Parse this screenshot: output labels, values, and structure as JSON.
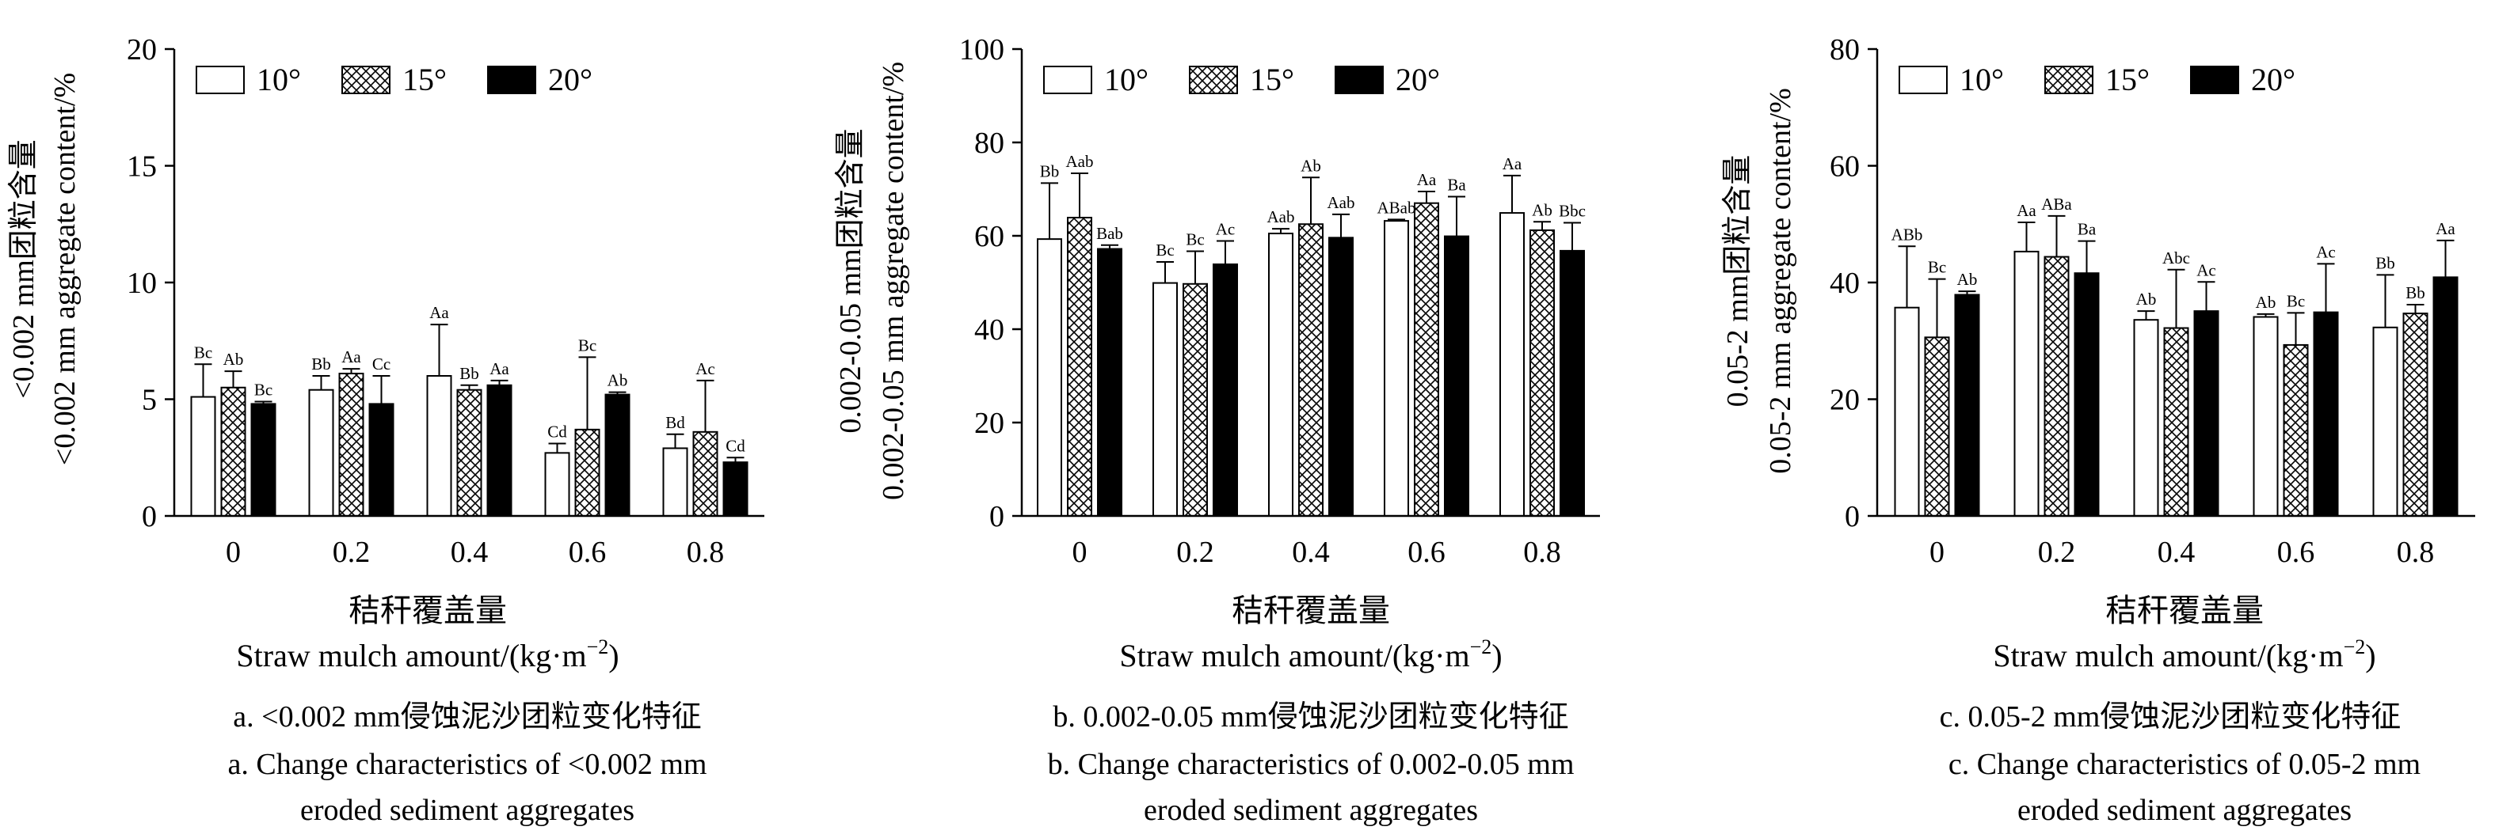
{
  "panels": [
    {
      "ylabel_cn": "<0.002 mm团粒含量",
      "ylabel_en": "<0.002 mm aggregate content/%",
      "xlabel_cn": "秸秆覆盖量",
      "xlabel_en": "Straw mulch amount/(kg·m",
      "xlabel_sup": "−2",
      "xlabel_end": ")",
      "caption_cn": "a. <0.002 mm侵蚀泥沙团粒变化特征",
      "caption_en1": "a. Change characteristics of <0.002 mm",
      "caption_en2": "eroded sediment aggregates"
    },
    {
      "ylabel_cn": "0.002-0.05 mm团粒含量",
      "ylabel_en": "0.002-0.05 mm aggregate content/%",
      "xlabel_cn": "秸秆覆盖量",
      "xlabel_en": "Straw mulch amount/(kg·m",
      "xlabel_sup": "−2",
      "xlabel_end": ")",
      "caption_cn": "b. 0.002-0.05 mm侵蚀泥沙团粒变化特征",
      "caption_en1": "b. Change characteristics of 0.002-0.05 mm",
      "caption_en2": "eroded sediment aggregates"
    },
    {
      "ylabel_cn": "0.05-2 mm团粒含量",
      "ylabel_en": "0.05-2  mm aggregate content/%",
      "xlabel_cn": "秸秆覆盖量",
      "xlabel_en": "Straw mulch amount/(kg·m",
      "xlabel_sup": "−2",
      "xlabel_end": ")",
      "caption_cn": "c. 0.05-2 mm侵蚀泥沙团粒变化特征",
      "caption_en1": "c. Change characteristics of 0.05-2 mm",
      "caption_en2": "eroded sediment aggregates"
    }
  ],
  "chart_data": [
    {
      "type": "bar",
      "categories": [
        "0",
        "0.2",
        "0.4",
        "0.6",
        "0.8"
      ],
      "ylim": [
        0,
        20
      ],
      "yticks": [
        "0",
        "5",
        "10",
        "15",
        "20"
      ],
      "legend_position": "top-left",
      "series": [
        {
          "name": "10°",
          "fill": "white",
          "values": [
            5.1,
            5.4,
            6.0,
            2.7,
            2.9
          ],
          "errors": [
            1.4,
            0.6,
            2.2,
            0.4,
            0.6
          ],
          "labels": [
            "Bc",
            "Bb",
            "Aa",
            "Cd",
            "Bd"
          ]
        },
        {
          "name": "15°",
          "fill": "crosshatch",
          "values": [
            5.5,
            6.1,
            5.4,
            3.7,
            3.6
          ],
          "errors": [
            0.7,
            0.2,
            0.2,
            3.1,
            2.2
          ],
          "labels": [
            "Ab",
            "Aa",
            "Bb",
            "Bc",
            "Ac"
          ]
        },
        {
          "name": "20°",
          "fill": "black",
          "values": [
            4.8,
            4.8,
            5.6,
            5.2,
            2.3
          ],
          "errors": [
            0.1,
            1.2,
            0.2,
            0.1,
            0.2
          ],
          "labels": [
            "Bc",
            "Cc",
            "Aa",
            "Ab",
            "Cd"
          ]
        }
      ]
    },
    {
      "type": "bar",
      "categories": [
        "0",
        "0.2",
        "0.4",
        "0.6",
        "0.8"
      ],
      "ylim": [
        0,
        100
      ],
      "yticks": [
        "0",
        "20",
        "40",
        "60",
        "80",
        "100"
      ],
      "legend_position": "top-left",
      "series": [
        {
          "name": "10°",
          "fill": "white",
          "values": [
            59.3,
            49.9,
            60.5,
            63.2,
            64.9
          ],
          "errors": [
            12,
            4.5,
            1.0,
            0.3,
            8.0
          ],
          "labels": [
            "Bb",
            "Bc",
            "Aab",
            "ABab",
            "Aa"
          ]
        },
        {
          "name": "15°",
          "fill": "crosshatch",
          "values": [
            63.9,
            49.7,
            62.5,
            67.0,
            61.2
          ],
          "errors": [
            9.5,
            7.0,
            10.0,
            2.5,
            1.8
          ],
          "labels": [
            "Aab",
            "Bc",
            "Ab",
            "Aa",
            "Ab"
          ]
        },
        {
          "name": "20°",
          "fill": "black",
          "values": [
            57.2,
            53.9,
            59.6,
            59.9,
            56.8
          ],
          "errors": [
            0.8,
            5.0,
            5.0,
            8.5,
            6.0
          ],
          "labels": [
            "Bab",
            "Ac",
            "Aab",
            "Ba",
            "Bbc"
          ]
        }
      ]
    },
    {
      "type": "bar",
      "categories": [
        "0",
        "0.2",
        "0.4",
        "0.6",
        "0.8"
      ],
      "ylim": [
        0,
        80
      ],
      "yticks": [
        "0",
        "20",
        "40",
        "60",
        "80"
      ],
      "legend_position": "top-left",
      "series": [
        {
          "name": "10°",
          "fill": "white",
          "values": [
            35.7,
            45.3,
            33.6,
            34.1,
            32.3
          ],
          "errors": [
            10.5,
            5.0,
            1.5,
            0.5,
            9.0
          ],
          "labels": [
            "ABb",
            "Aa",
            "Ab",
            "Ab",
            "Bb"
          ]
        },
        {
          "name": "15°",
          "fill": "crosshatch",
          "values": [
            30.6,
            44.4,
            32.2,
            29.3,
            34.7
          ],
          "errors": [
            10.0,
            7.0,
            10.0,
            5.5,
            1.5
          ],
          "labels": [
            "Bc",
            "ABa",
            "Abc",
            "Bc",
            "Bb"
          ]
        },
        {
          "name": "20°",
          "fill": "black",
          "values": [
            37.9,
            41.6,
            35.1,
            34.9,
            40.9
          ],
          "errors": [
            0.6,
            5.5,
            5.0,
            8.3,
            6.3
          ],
          "labels": [
            "Ab",
            "Ba",
            "Ac",
            "Ac",
            "Aa"
          ]
        }
      ]
    }
  ]
}
